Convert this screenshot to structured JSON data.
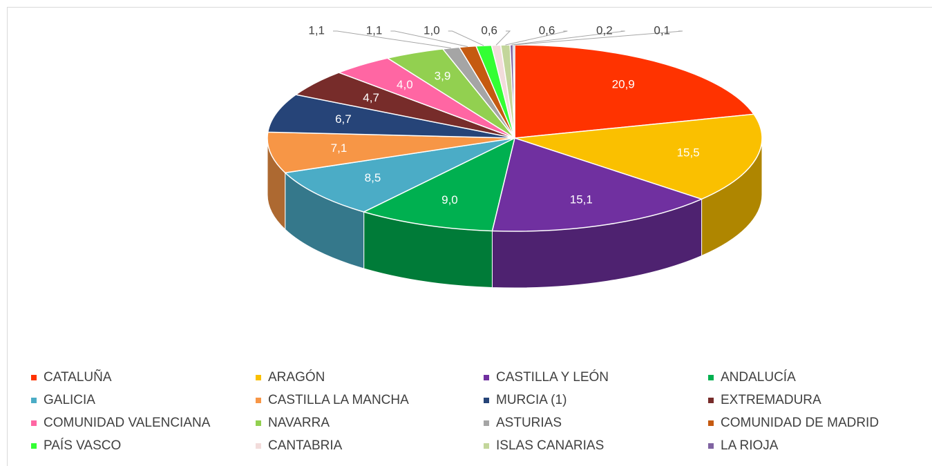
{
  "chart_data": {
    "type": "pie",
    "categories": [
      "CATALUÑA",
      "ARAGÓN",
      "CASTILLA Y LEÓN",
      "ANDALUCÍA",
      "GALICIA",
      "CASTILLA LA MANCHA",
      "MURCIA (1)",
      "EXTREMADURA",
      "COMUNIDAD VALENCIANA",
      "NAVARRA",
      "ASTURIAS",
      "COMUNIDAD DE MADRID",
      "PAÍS VASCO",
      "CANTABRIA",
      "ISLAS CANARIAS",
      "LA RIOJA",
      null
    ],
    "values": [
      20.9,
      15.5,
      15.1,
      9.0,
      8.5,
      7.1,
      6.7,
      4.7,
      4.0,
      3.9,
      1.1,
      1.1,
      1.0,
      0.6,
      0.6,
      0.2,
      0.1
    ],
    "value_labels": [
      "20,9",
      "15,5",
      "15,1",
      "9,0",
      "8,5",
      "7,1",
      "6,7",
      "4,7",
      "4,0",
      "3,9",
      "1,1",
      "1,1",
      "1,0",
      "0,6",
      "0,6",
      "0,2",
      "0,1"
    ],
    "colors": [
      "#ff3300",
      "#fac000",
      "#7030a0",
      "#00b050",
      "#4bacc6",
      "#f79646",
      "#264478",
      "#772c2a",
      "#ff66a3",
      "#92d050",
      "#a5a5a5",
      "#c55a11",
      "#33ff33",
      "#f2dcdb",
      "#c3d69b",
      "#8064a2",
      "#7f8fa9"
    ],
    "legend": "bottom"
  }
}
